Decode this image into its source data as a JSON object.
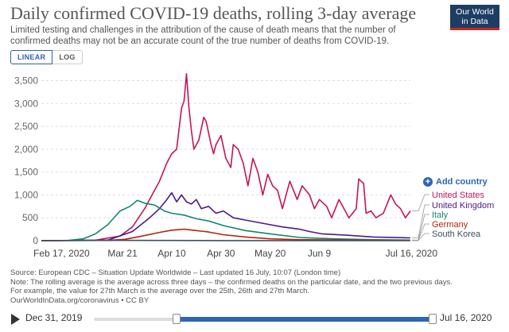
{
  "header": {
    "title": "Daily confirmed COVID-19 deaths, rolling 3-day average",
    "subtitle": "Limited testing and challenges in the attribution of the cause of death means that the number of confirmed deaths may not be an accurate count of the true number of deaths from COVID-19.",
    "logo_line1": "Our World",
    "logo_line2": "in Data"
  },
  "scale_toggle": {
    "linear": "LINEAR",
    "log": "LOG",
    "active": "linear"
  },
  "add_country_label": "Add country",
  "footer": {
    "source": "Source: European CDC – Situation Update Worldwide – Last updated 16 July, 10:07 (London time)",
    "note1": "Note: The rolling average is the average across three days – the confirmed deaths on the particular date, and the two previous days.",
    "note2": "For example, the value for 27th March is the average over the 25th, 26th and 27th March.",
    "license": "OurWorldInData.org/coronavirus • CC BY"
  },
  "timeline": {
    "start_label": "Dec 31, 2019",
    "end_label": "Jul 16, 2020"
  },
  "colors": {
    "United States": "#c4145a",
    "United Kingdom": "#4c1a8a",
    "Italy": "#14866d",
    "Germany": "#b5230f",
    "South Korea": "#3b5060"
  },
  "chart_data": {
    "type": "line",
    "x_ticks": [
      "Feb 17, 2020",
      "Mar 21",
      "Apr 10",
      "Apr 30",
      "May 20",
      "Jun 9",
      "Jul 16, 2020"
    ],
    "x_range": [
      "2020-02-17",
      "2020-07-16"
    ],
    "y_ticks": [
      0,
      500,
      1000,
      1500,
      2000,
      2500,
      3000,
      3500
    ],
    "y_tick_labels": [
      "0",
      "500",
      "1,000",
      "1,500",
      "2,000",
      "2,500",
      "3,000",
      "3,500"
    ],
    "ylim": [
      0,
      3700
    ],
    "grid": "horizontal-dashed",
    "legend": "right-end-labels",
    "series": [
      {
        "name": "United States",
        "dates": [
          "2020-02-17",
          "2020-03-10",
          "2020-03-20",
          "2020-03-25",
          "2020-03-30",
          "2020-04-02",
          "2020-04-05",
          "2020-04-08",
          "2020-04-10",
          "2020-04-12",
          "2020-04-14",
          "2020-04-15",
          "2020-04-16",
          "2020-04-17",
          "2020-04-18",
          "2020-04-19",
          "2020-04-21",
          "2020-04-23",
          "2020-04-24",
          "2020-04-26",
          "2020-04-27",
          "2020-04-28",
          "2020-04-30",
          "2020-05-02",
          "2020-05-04",
          "2020-05-05",
          "2020-05-07",
          "2020-05-09",
          "2020-05-11",
          "2020-05-13",
          "2020-05-15",
          "2020-05-17",
          "2020-05-19",
          "2020-05-21",
          "2020-05-23",
          "2020-05-25",
          "2020-05-28",
          "2020-05-31",
          "2020-06-02",
          "2020-06-05",
          "2020-06-07",
          "2020-06-09",
          "2020-06-12",
          "2020-06-14",
          "2020-06-17",
          "2020-06-21",
          "2020-06-24",
          "2020-06-25",
          "2020-06-27",
          "2020-06-28",
          "2020-06-30",
          "2020-07-02",
          "2020-07-05",
          "2020-07-08",
          "2020-07-10",
          "2020-07-12",
          "2020-07-14",
          "2020-07-16"
        ],
        "values": [
          0,
          10,
          100,
          300,
          700,
          1000,
          1300,
          1700,
          1900,
          2000,
          2900,
          3050,
          3650,
          2900,
          2400,
          2000,
          2200,
          2700,
          2600,
          2100,
          1900,
          2100,
          2300,
          1800,
          1600,
          2100,
          2000,
          1700,
          1200,
          1800,
          1500,
          1000,
          1450,
          1200,
          1100,
          700,
          1300,
          900,
          1200,
          1000,
          700,
          900,
          750,
          500,
          900,
          500,
          700,
          1350,
          1250,
          600,
          650,
          500,
          600,
          1000,
          800,
          700,
          500,
          650
        ]
      },
      {
        "name": "United Kingdom",
        "dates": [
          "2020-02-17",
          "2020-03-15",
          "2020-03-25",
          "2020-04-01",
          "2020-04-05",
          "2020-04-08",
          "2020-04-10",
          "2020-04-12",
          "2020-04-14",
          "2020-04-16",
          "2020-04-18",
          "2020-04-20",
          "2020-04-22",
          "2020-04-25",
          "2020-04-28",
          "2020-05-01",
          "2020-05-05",
          "2020-05-10",
          "2020-05-15",
          "2020-05-20",
          "2020-05-25",
          "2020-06-01",
          "2020-06-05",
          "2020-06-10",
          "2020-06-20",
          "2020-07-01",
          "2020-07-16"
        ],
        "values": [
          0,
          10,
          200,
          500,
          700,
          900,
          1050,
          850,
          1000,
          850,
          800,
          900,
          700,
          750,
          600,
          650,
          500,
          450,
          400,
          350,
          300,
          250,
          200,
          150,
          120,
          80,
          60
        ]
      },
      {
        "name": "Italy",
        "dates": [
          "2020-02-17",
          "2020-02-28",
          "2020-03-05",
          "2020-03-10",
          "2020-03-15",
          "2020-03-20",
          "2020-03-24",
          "2020-03-27",
          "2020-03-30",
          "2020-04-03",
          "2020-04-07",
          "2020-04-10",
          "2020-04-15",
          "2020-04-20",
          "2020-04-25",
          "2020-05-01",
          "2020-05-10",
          "2020-05-20",
          "2020-06-01",
          "2020-06-15",
          "2020-07-01",
          "2020-07-16"
        ],
        "values": [
          0,
          5,
          40,
          150,
          350,
          650,
          750,
          880,
          820,
          780,
          650,
          600,
          560,
          480,
          430,
          330,
          220,
          150,
          70,
          40,
          20,
          12
        ]
      },
      {
        "name": "Germany",
        "dates": [
          "2020-02-17",
          "2020-03-15",
          "2020-03-22",
          "2020-03-29",
          "2020-04-05",
          "2020-04-10",
          "2020-04-15",
          "2020-04-20",
          "2020-04-25",
          "2020-05-01",
          "2020-05-10",
          "2020-05-20",
          "2020-06-01",
          "2020-07-16"
        ],
        "values": [
          0,
          5,
          30,
          100,
          180,
          230,
          250,
          220,
          190,
          130,
          80,
          40,
          20,
          5
        ]
      },
      {
        "name": "South Korea",
        "dates": [
          "2020-02-17",
          "2020-03-01",
          "2020-03-15",
          "2020-04-01",
          "2020-05-01",
          "2020-06-01",
          "2020-07-16"
        ],
        "values": [
          0,
          3,
          7,
          5,
          2,
          1,
          1
        ]
      }
    ]
  }
}
